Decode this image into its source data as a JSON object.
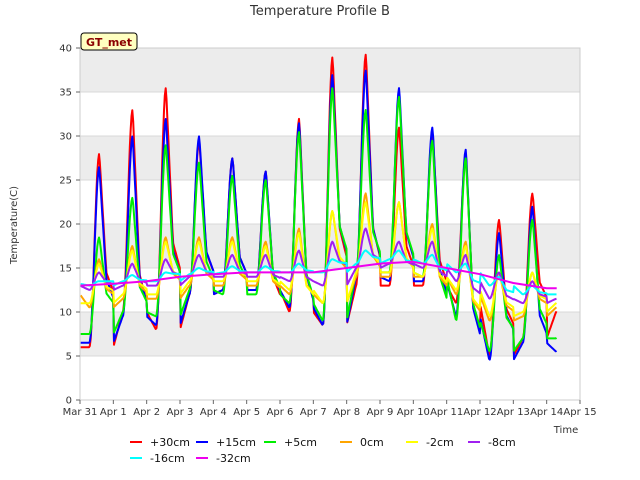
{
  "chart_data": {
    "type": "line",
    "title": "Temperature Profile B",
    "xlabel": "Time",
    "ylabel": "Temperature(C)",
    "badge": "GT_met",
    "x_ticks": [
      "Mar 31",
      "Apr 1",
      "Apr 2",
      "Apr 3",
      "Apr 4",
      "Apr 5",
      "Apr 6",
      "Apr 7",
      "Apr 8",
      "Apr 9",
      "Apr 10",
      "Apr 11",
      "Apr 12",
      "Apr 13",
      "Apr 14",
      "Apr 15"
    ],
    "xlim": [
      0,
      15
    ],
    "ylim": [
      0,
      40
    ],
    "y_ticks": [
      0,
      5,
      10,
      15,
      20,
      25,
      30,
      35,
      40
    ],
    "grid": true,
    "legend_position": "bottom",
    "series": [
      {
        "name": "+30cm",
        "color": "#ff0000",
        "peaks": [
          28,
          33,
          35.5,
          29.5,
          27.5,
          26,
          32,
          39,
          39.3,
          31,
          30.5,
          28,
          20.5,
          23.5,
          23.8
        ],
        "troughs": [
          6,
          10,
          8,
          12,
          12.5,
          12.5,
          10,
          8.5,
          13,
          13,
          13,
          11,
          5,
          7,
          10
        ],
        "start": 6,
        "end": 9.8
      },
      {
        "name": "+15cm",
        "color": "#0000ff",
        "peaks": [
          26.5,
          30,
          32,
          30,
          27.5,
          26,
          31.5,
          37,
          37.5,
          35.5,
          31,
          28.5,
          19,
          22,
          22.5
        ],
        "troughs": [
          6.5,
          9.5,
          8.5,
          12,
          12.5,
          12.5,
          10.5,
          8.5,
          14,
          13.5,
          13.5,
          9.5,
          4.5,
          6.5,
          5.5
        ],
        "start": 6.5,
        "end": 9.8
      },
      {
        "name": "+5cm",
        "color": "#00ee00",
        "peaks": [
          18.5,
          23,
          29,
          27,
          25.5,
          25,
          30.5,
          35.5,
          33,
          34.5,
          29.5,
          27.5,
          16.5,
          20.5,
          18
        ],
        "troughs": [
          7.5,
          10,
          9.5,
          12.5,
          12,
          12,
          11,
          9,
          14.5,
          14.5,
          14,
          9,
          5.5,
          7,
          7
        ],
        "start": 7.5,
        "end": 10
      },
      {
        "name": "0cm",
        "color": "#ffa500",
        "peaks": [
          16,
          17.5,
          18.5,
          18.5,
          18.5,
          18,
          19.5,
          21.5,
          23.5,
          22.5,
          20,
          18,
          14.5,
          14.5,
          15
        ],
        "troughs": [
          10.5,
          11.5,
          11.5,
          13,
          13,
          13,
          12,
          11,
          14,
          14,
          14,
          12,
          9,
          9.5,
          10.5
        ],
        "start": 12,
        "end": 11.5
      },
      {
        "name": "-2cm",
        "color": "#ffff00",
        "peaks": [
          15.5,
          17,
          18,
          18,
          18,
          17.5,
          19,
          21.5,
          22.5,
          22.5,
          19.5,
          17.5,
          14.5,
          14.5,
          14.5
        ],
        "troughs": [
          11,
          12,
          12,
          13.5,
          13.5,
          13.5,
          12.5,
          11,
          14.5,
          14.5,
          14,
          12.5,
          9.5,
          10,
          11
        ],
        "start": 11,
        "end": 11.5
      },
      {
        "name": "-8cm",
        "color": "#a020f0",
        "peaks": [
          14.5,
          15.5,
          16,
          16.5,
          16.5,
          16.5,
          17,
          18,
          19.5,
          18,
          18,
          16.5,
          14.5,
          13.5,
          13.5
        ],
        "troughs": [
          12.5,
          13,
          13,
          14,
          14,
          14,
          13.5,
          13,
          15,
          15.5,
          15,
          13.5,
          11.5,
          11,
          11.5
        ],
        "start": 13,
        "end": 11.5
      },
      {
        "name": "-16cm",
        "color": "#00ffff",
        "peaks": [
          13.5,
          14.2,
          14.5,
          15,
          15.2,
          15.2,
          15.5,
          16,
          17,
          17,
          16.5,
          15.5,
          14,
          13,
          12.8
        ],
        "troughs": [
          13,
          13.5,
          13.5,
          14.3,
          14.5,
          14.5,
          14.5,
          14.5,
          15.5,
          16,
          15.5,
          14.5,
          13,
          12,
          12
        ],
        "start": 13.2,
        "end": 12
      },
      {
        "name": "-32cm",
        "color": "#ee00ee",
        "x": [
          0,
          1,
          2,
          3,
          4,
          5,
          6,
          7,
          8,
          9,
          10,
          11,
          12,
          13,
          14,
          14.3
        ],
        "values": [
          13,
          13.2,
          13.5,
          14,
          14.3,
          14.5,
          14.5,
          14.5,
          15,
          15.5,
          15.7,
          15,
          14.3,
          13.3,
          12.7,
          12.7
        ]
      }
    ]
  }
}
